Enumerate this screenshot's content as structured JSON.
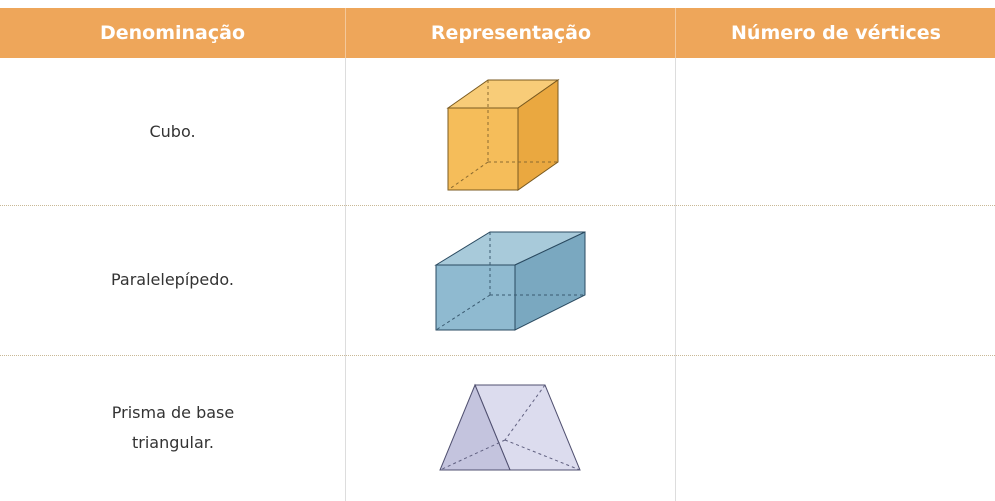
{
  "table": {
    "headers": [
      "Denominação",
      "Representação",
      "Número de vértices"
    ],
    "rows": [
      [
        "Cubo."
      ],
      [
        "Paralelepípedo."
      ],
      [
        "Prisma de base triangular."
      ]
    ]
  }
}
